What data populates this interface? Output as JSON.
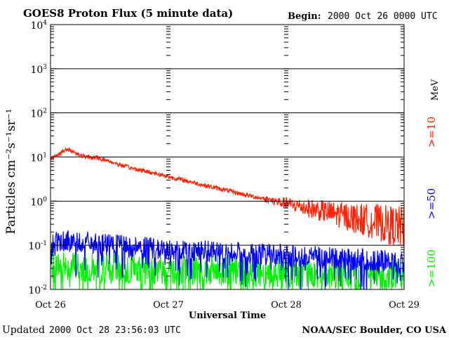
{
  "chart_data": {
    "type": "line",
    "title": "GOES8 Proton Flux (5 minute data)",
    "begin_label": "Begin:",
    "begin_value": "2000 Oct 26 0000 UTC",
    "xlabel": "Universal Time",
    "ylabel": "Particles cm⁻²s⁻¹sr⁻¹",
    "yscale": "log",
    "ylim": [
      0.01,
      10000
    ],
    "xlim_days": [
      0,
      3
    ],
    "x_ticks": [
      {
        "day": 0,
        "label": "Oct 26"
      },
      {
        "day": 1,
        "label": "Oct 27"
      },
      {
        "day": 2,
        "label": "Oct 28"
      },
      {
        "day": 3,
        "label": "Oct 29"
      }
    ],
    "y_ticks": [
      {
        "value": 0.01,
        "base": "10",
        "exp": "-2"
      },
      {
        "value": 0.1,
        "base": "10",
        "exp": "-1"
      },
      {
        "value": 1,
        "base": "10",
        "exp": "0"
      },
      {
        "value": 10,
        "base": "10",
        "exp": "1"
      },
      {
        "value": 100,
        "base": "10",
        "exp": "2"
      },
      {
        "value": 1000,
        "base": "10",
        "exp": "3"
      },
      {
        "value": 10000,
        "base": "10",
        "exp": "4"
      }
    ],
    "legend_unit": "MeV",
    "series": [
      {
        "name": ">=10",
        "color": "#ff2200",
        "x": [
          0,
          0.05,
          0.1,
          0.15,
          0.2,
          0.25,
          0.3,
          0.4,
          0.5,
          0.6,
          0.7,
          0.8,
          0.9,
          1.0,
          1.1,
          1.2,
          1.3,
          1.4,
          1.5,
          1.6,
          1.7,
          1.8,
          1.9,
          2.0,
          2.1,
          2.2,
          2.3,
          2.4,
          2.5,
          2.6,
          2.7,
          2.8,
          2.9,
          3.0
        ],
        "values": [
          9,
          11,
          13,
          15,
          13,
          11,
          10,
          9.5,
          8,
          6.5,
          5.5,
          4.8,
          4.2,
          3.6,
          3.1,
          2.7,
          2.3,
          2.0,
          1.75,
          1.5,
          1.3,
          1.15,
          1.0,
          0.88,
          0.78,
          0.68,
          0.6,
          0.52,
          0.46,
          0.4,
          0.36,
          0.32,
          0.28,
          0.25
        ]
      },
      {
        "name": ">=50",
        "color": "#0000ff",
        "x": [
          0,
          0.25,
          0.5,
          0.75,
          1.0,
          1.25,
          1.5,
          1.75,
          2.0,
          2.25,
          2.5,
          2.75,
          3.0
        ],
        "values": [
          0.13,
          0.12,
          0.1,
          0.09,
          0.08,
          0.075,
          0.07,
          0.065,
          0.06,
          0.055,
          0.05,
          0.045,
          0.04
        ]
      },
      {
        "name": ">=100",
        "color": "#00ee00",
        "x": [
          0,
          0.5,
          1.0,
          1.5,
          2.0,
          2.5,
          3.0
        ],
        "values": [
          0.035,
          0.03,
          0.028,
          0.026,
          0.024,
          0.022,
          0.02
        ]
      }
    ]
  },
  "footer": {
    "updated_label": "Updated",
    "updated_value": "2000 Oct 28 23:56:03 UTC",
    "credit": "NOAA/SEC Boulder, CO USA"
  }
}
